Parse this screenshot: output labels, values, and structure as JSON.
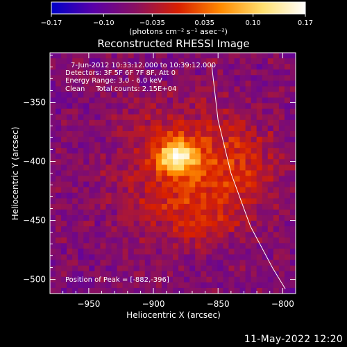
{
  "chart_data": {
    "type": "heatmap",
    "title": "Reconstructed RHESSI Image",
    "xlabel": "Heliocentric X (arcsec)",
    "ylabel": "Heliocentric Y (arcsec)",
    "xlim": [
      -980,
      -790
    ],
    "ylim": [
      -512,
      -308
    ],
    "xticks": [
      -950,
      -900,
      -850,
      -800
    ],
    "yticks": [
      -350,
      -400,
      -450,
      -500
    ],
    "xtick_labels": [
      "−950",
      "−900",
      "−850",
      "−800"
    ],
    "ytick_labels": [
      "−350",
      "−400",
      "−450",
      "−500"
    ],
    "colorbar": {
      "range": [
        -0.17,
        0.17
      ],
      "ticks": [
        -0.17,
        -0.1,
        -0.035,
        0.035,
        0.1,
        0.17
      ],
      "tick_labels": [
        "−0.17",
        "−0.10",
        "−0.035",
        "0.035",
        "0.10",
        "0.17"
      ],
      "unit_label": "(photons cm⁻² s⁻¹ asec⁻²)",
      "colors": [
        "#0000c8",
        "#5a00a8",
        "#8a1060",
        "#d82000",
        "#ff8a00",
        "#ffe070",
        "#ffffff"
      ]
    },
    "annotations": [
      "7-Jun-2012 10:33:12.000 to 10:39:12.000",
      "Detectors: 3F 5F 6F 7F 8F, Att 0",
      "Energy Range: 3.0 - 6.0 keV",
      "Clean     Total counts: 2.15E+04"
    ],
    "peak": {
      "label": "Position of Peak = [-882,-396]",
      "x": -882,
      "y": -396,
      "value": 0.17
    },
    "limb_line": [
      [
        -855,
        -318
      ],
      [
        -850,
        -365
      ],
      [
        -840,
        -410
      ],
      [
        -825,
        -455
      ],
      [
        -808,
        -490
      ],
      [
        -798,
        -508
      ]
    ],
    "sources": [
      {
        "x": -882,
        "y": -396,
        "sx": 10,
        "sy": 10,
        "amp": 0.17
      },
      {
        "x": -885,
        "y": -420,
        "sx": 32,
        "sy": 28,
        "amp": 0.055
      },
      {
        "x": -855,
        "y": -395,
        "sx": 22,
        "sy": 35,
        "amp": 0.045
      },
      {
        "x": -825,
        "y": -410,
        "sx": 20,
        "sy": 30,
        "amp": 0.035
      },
      {
        "x": -905,
        "y": -368,
        "sx": 18,
        "sy": 16,
        "amp": 0.03
      },
      {
        "x": -870,
        "y": -455,
        "sx": 22,
        "sy": 14,
        "amp": 0.03
      }
    ],
    "background_level": -0.07
  },
  "footer": {
    "date": "11-May-2022 12:20"
  }
}
